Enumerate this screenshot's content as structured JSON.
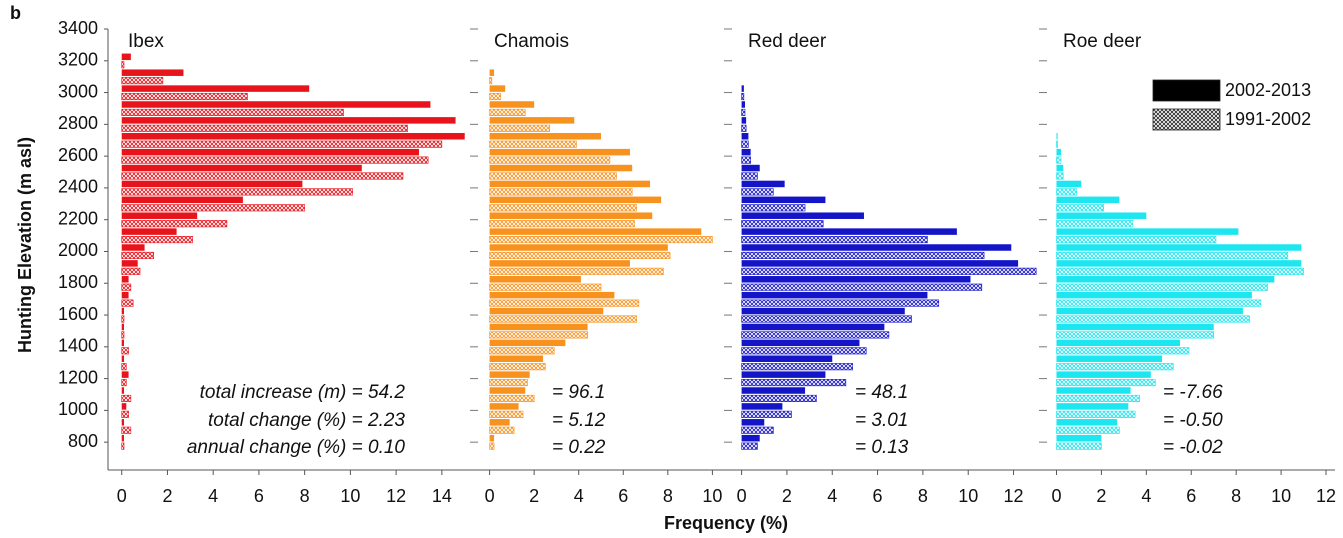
{
  "chart_data": {
    "type": "bar",
    "orientation": "horizontal",
    "panel_label": "b",
    "y_label": "Hunting Elevation (m asl)",
    "x_label": "Frequency (%)",
    "y": [
      800,
      900,
      1000,
      1100,
      1200,
      1300,
      1400,
      1500,
      1600,
      1700,
      1800,
      1900,
      2000,
      2100,
      2200,
      2300,
      2400,
      2500,
      2600,
      2700,
      2800,
      2900,
      3000,
      3100,
      3200
    ],
    "ylim": [
      650,
      3400
    ],
    "yticks": [
      800,
      1000,
      1200,
      1400,
      1600,
      1800,
      2000,
      2200,
      2400,
      2600,
      2800,
      3000,
      3200,
      3400
    ],
    "legend": [
      {
        "name": "2002-2013",
        "style": "solid"
      },
      {
        "name": "1991-2002",
        "style": "hatched"
      }
    ],
    "panels": [
      {
        "name": "Ibex",
        "color": "#e8141c",
        "xlim": [
          -0.6,
          15.1
        ],
        "xticks": [
          0,
          2,
          4,
          6,
          8,
          10,
          12,
          14
        ],
        "series": [
          {
            "values": [
              0.1,
              0.1,
              0.2,
              0.1,
              0.3,
              0.1,
              0.1,
              0.1,
              0.1,
              0.3,
              0.3,
              0.7,
              1.0,
              2.4,
              3.3,
              5.3,
              7.9,
              10.5,
              13.0,
              15.0,
              14.6,
              13.5,
              8.2,
              2.7,
              0.4
            ]
          },
          {
            "values": [
              0.1,
              0.4,
              0.3,
              0.4,
              0.2,
              0.2,
              0.3,
              0.1,
              0.1,
              0.5,
              0.4,
              0.8,
              1.4,
              3.1,
              4.6,
              8.0,
              10.1,
              12.3,
              13.4,
              14.0,
              12.5,
              9.7,
              5.5,
              1.8,
              0.1
            ]
          }
        ],
        "annotations": [
          "total increase (m) = 54.2",
          "total change (%) = 2.23",
          "annual change (%) = 0.10"
        ]
      },
      {
        "name": "Chamois",
        "color": "#f7921e",
        "xlim": [
          -0.7,
          10.7
        ],
        "xticks": [
          0,
          2,
          4,
          6,
          8,
          10
        ],
        "series": [
          {
            "values": [
              0.2,
              0.9,
              1.3,
              1.6,
              1.8,
              2.4,
              3.4,
              4.4,
              5.1,
              5.6,
              4.1,
              6.3,
              8.0,
              9.5,
              7.3,
              7.7,
              7.2,
              6.4,
              6.3,
              5.0,
              3.8,
              2.0,
              0.7,
              0.2,
              null
            ]
          },
          {
            "values": [
              0.2,
              1.1,
              1.5,
              2.0,
              1.7,
              2.5,
              2.9,
              4.4,
              6.6,
              6.7,
              5.0,
              7.8,
              8.1,
              10.0,
              6.5,
              6.6,
              6.4,
              5.7,
              5.4,
              3.9,
              2.7,
              1.6,
              0.5,
              0.1,
              null
            ]
          }
        ],
        "annotations": [
          "= 96.1",
          "= 5.12",
          "= 0.22"
        ]
      },
      {
        "name": "Red deer",
        "color": "#1515c8",
        "xlim": [
          -0.6,
          13.3
        ],
        "xticks": [
          0,
          2,
          4,
          6,
          8,
          10,
          12
        ],
        "series": [
          {
            "values": [
              0.8,
              1.0,
              1.8,
              2.8,
              3.7,
              4.0,
              5.2,
              6.3,
              7.2,
              8.2,
              10.1,
              12.2,
              11.9,
              9.5,
              5.4,
              3.7,
              1.9,
              0.8,
              0.4,
              0.3,
              0.2,
              0.15,
              0.1,
              null,
              null
            ]
          },
          {
            "values": [
              0.7,
              1.4,
              2.2,
              3.3,
              4.6,
              4.9,
              5.5,
              6.5,
              7.5,
              8.7,
              10.6,
              13.0,
              10.7,
              8.2,
              3.6,
              2.8,
              1.4,
              0.7,
              0.4,
              0.3,
              0.2,
              0.15,
              0.1,
              null,
              null
            ]
          }
        ],
        "annotations": [
          "= 48.1",
          "= 3.01",
          "= 0.13"
        ]
      },
      {
        "name": "Roe deer",
        "color": "#1ee6f0",
        "xlim": [
          -0.6,
          12.4
        ],
        "xticks": [
          0,
          2,
          4,
          6,
          8,
          10,
          12
        ],
        "series": [
          {
            "values": [
              2.0,
              2.7,
              3.2,
              3.3,
              4.2,
              4.7,
              5.5,
              7.0,
              8.3,
              8.7,
              9.7,
              10.9,
              10.9,
              8.1,
              4.0,
              2.8,
              1.1,
              0.3,
              0.2,
              0.05,
              null,
              null,
              null,
              null,
              null
            ]
          },
          {
            "values": [
              2.0,
              2.8,
              3.5,
              3.7,
              4.4,
              5.2,
              5.9,
              7.0,
              8.6,
              9.1,
              9.4,
              11.0,
              10.3,
              7.1,
              3.4,
              2.1,
              0.9,
              0.3,
              0.2,
              0.05,
              null,
              null,
              null,
              null,
              null
            ]
          }
        ],
        "annotations": [
          "= -7.66",
          "= -0.50",
          "= -0.02"
        ]
      }
    ]
  }
}
